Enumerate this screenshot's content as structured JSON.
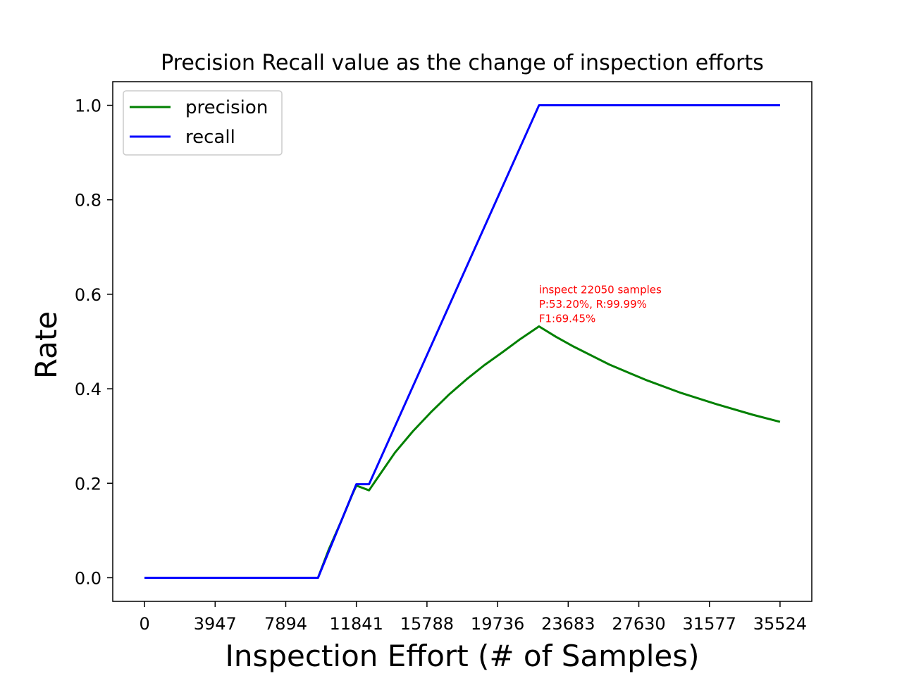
{
  "chart_data": {
    "type": "line",
    "title": "Precision Recall value as the change of inspection efforts",
    "xlabel": "Inspection Effort (# of Samples)",
    "ylabel": "Rate",
    "xlim": [
      -1776,
      37300
    ],
    "ylim": [
      -0.05,
      1.05
    ],
    "x_ticks": [
      0,
      3947,
      7894,
      11841,
      15788,
      19736,
      23683,
      27630,
      31577,
      35524
    ],
    "y_ticks": [
      0.0,
      0.2,
      0.4,
      0.6,
      0.8,
      1.0
    ],
    "y_tick_labels": [
      "0.0",
      "0.2",
      "0.4",
      "0.6",
      "0.8",
      "1.0"
    ],
    "grid": false,
    "legend_position": "top-left",
    "series": [
      {
        "name": "precision",
        "color": "#008000",
        "x": [
          0,
          9700,
          10300,
          11000,
          11600,
          11841,
          12550,
          13000,
          14000,
          15000,
          16000,
          17000,
          18000,
          19000,
          20000,
          21000,
          22050,
          23000,
          24000,
          26000,
          28000,
          30000,
          32000,
          34000,
          35524
        ],
        "y": [
          0.0,
          0.0,
          0.06,
          0.12,
          0.175,
          0.195,
          0.185,
          0.21,
          0.265,
          0.31,
          0.35,
          0.387,
          0.42,
          0.45,
          0.477,
          0.505,
          0.532,
          0.51,
          0.489,
          0.451,
          0.419,
          0.391,
          0.367,
          0.345,
          0.33
        ]
      },
      {
        "name": "recall",
        "color": "#0000ff",
        "x": [
          0,
          9700,
          11841,
          12550,
          22050,
          35524
        ],
        "y": [
          0.0,
          0.0,
          0.198,
          0.198,
          1.0,
          1.0
        ]
      }
    ],
    "annotation": {
      "x": 22050,
      "y": 0.532,
      "color": "#ff0000",
      "lines": [
        "inspect 22050 samples",
        "P:53.20%, R:99.99%",
        "F1:69.45%"
      ]
    }
  }
}
